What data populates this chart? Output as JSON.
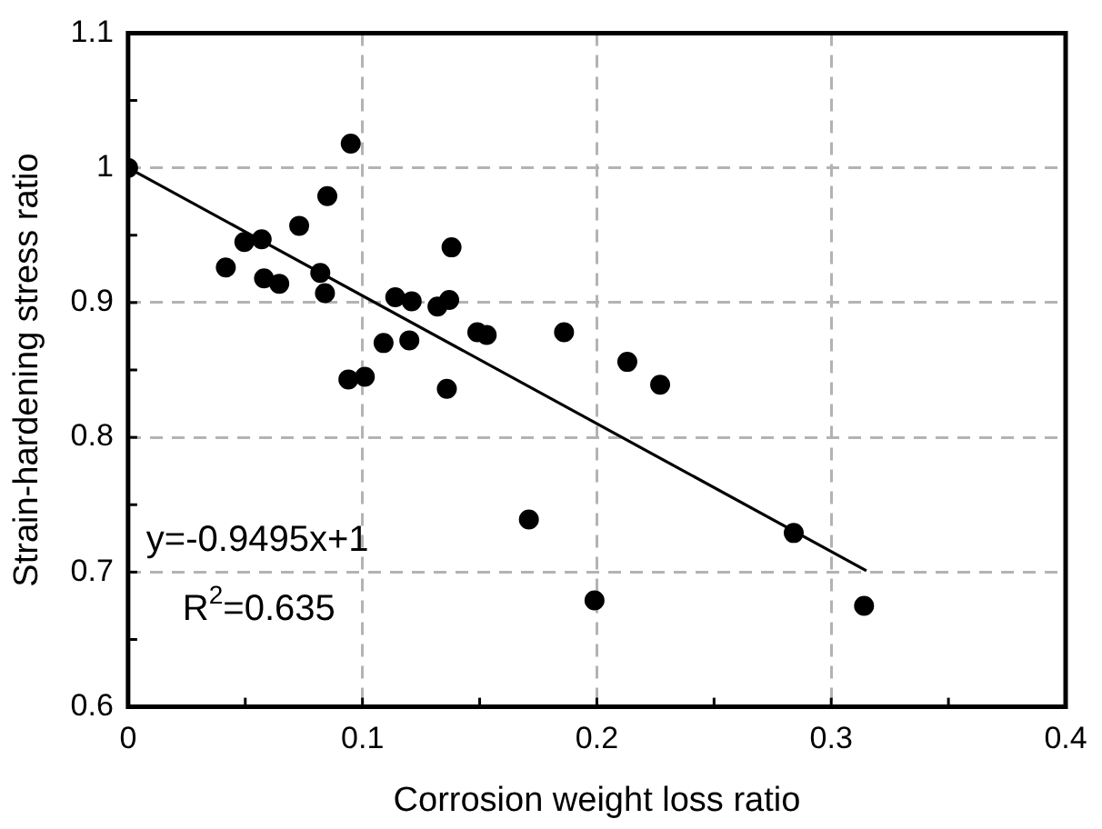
{
  "chart_data": {
    "type": "scatter",
    "xlabel": "Corrosion weight loss ratio",
    "ylabel": "Strain-hardening stress ratio",
    "xlim": [
      0,
      0.4
    ],
    "ylim": [
      0.6,
      1.1
    ],
    "xticks": [
      0,
      {
        "value": 0.05,
        "label": null
      },
      0.1,
      {
        "value": 0.15,
        "label": null
      },
      0.2,
      {
        "value": 0.25,
        "label": null
      },
      0.3,
      {
        "value": 0.35,
        "label": null
      },
      0.4
    ],
    "yticks": [
      0.6,
      {
        "value": 0.65,
        "label": null
      },
      0.7,
      {
        "value": 0.75,
        "label": null
      },
      0.8,
      {
        "value": 0.85,
        "label": null
      },
      0.9,
      {
        "value": 0.95,
        "label": null
      },
      1,
      {
        "value": 1.05,
        "label": null
      },
      1.1
    ],
    "grid": true,
    "annotations": [
      "y=-0.9495x+1",
      "R$^{2}$=0.635"
    ],
    "series": [
      {
        "type": "scatter",
        "marker": "circle",
        "color": "#000000",
        "x": [
          0,
          0.0417,
          0.0496,
          0.057,
          0.058,
          0.0645,
          0.073,
          0.085,
          0.095,
          0.082,
          0.084,
          0.094,
          0.101,
          0.109,
          0.114,
          0.121,
          0.12,
          0.132,
          0.137,
          0.138,
          0.136,
          0.149,
          0.153,
          0.186,
          0.213,
          0.227,
          0.284,
          0.199,
          0.314,
          0.171
        ],
        "values": [
          1.0,
          0.926,
          0.945,
          0.947,
          0.918,
          0.914,
          0.957,
          0.979,
          1.018,
          0.922,
          0.907,
          0.843,
          0.845,
          0.87,
          0.904,
          0.901,
          0.872,
          0.897,
          0.902,
          0.941,
          0.836,
          0.878,
          0.876,
          0.878,
          0.856,
          0.839,
          0.729,
          0.679,
          0.675,
          0.739
        ]
      },
      {
        "type": "line",
        "marker": "none",
        "color": "#000000",
        "x": [
          0,
          0.315
        ],
        "values": [
          1.0,
          0.701
        ]
      }
    ]
  }
}
